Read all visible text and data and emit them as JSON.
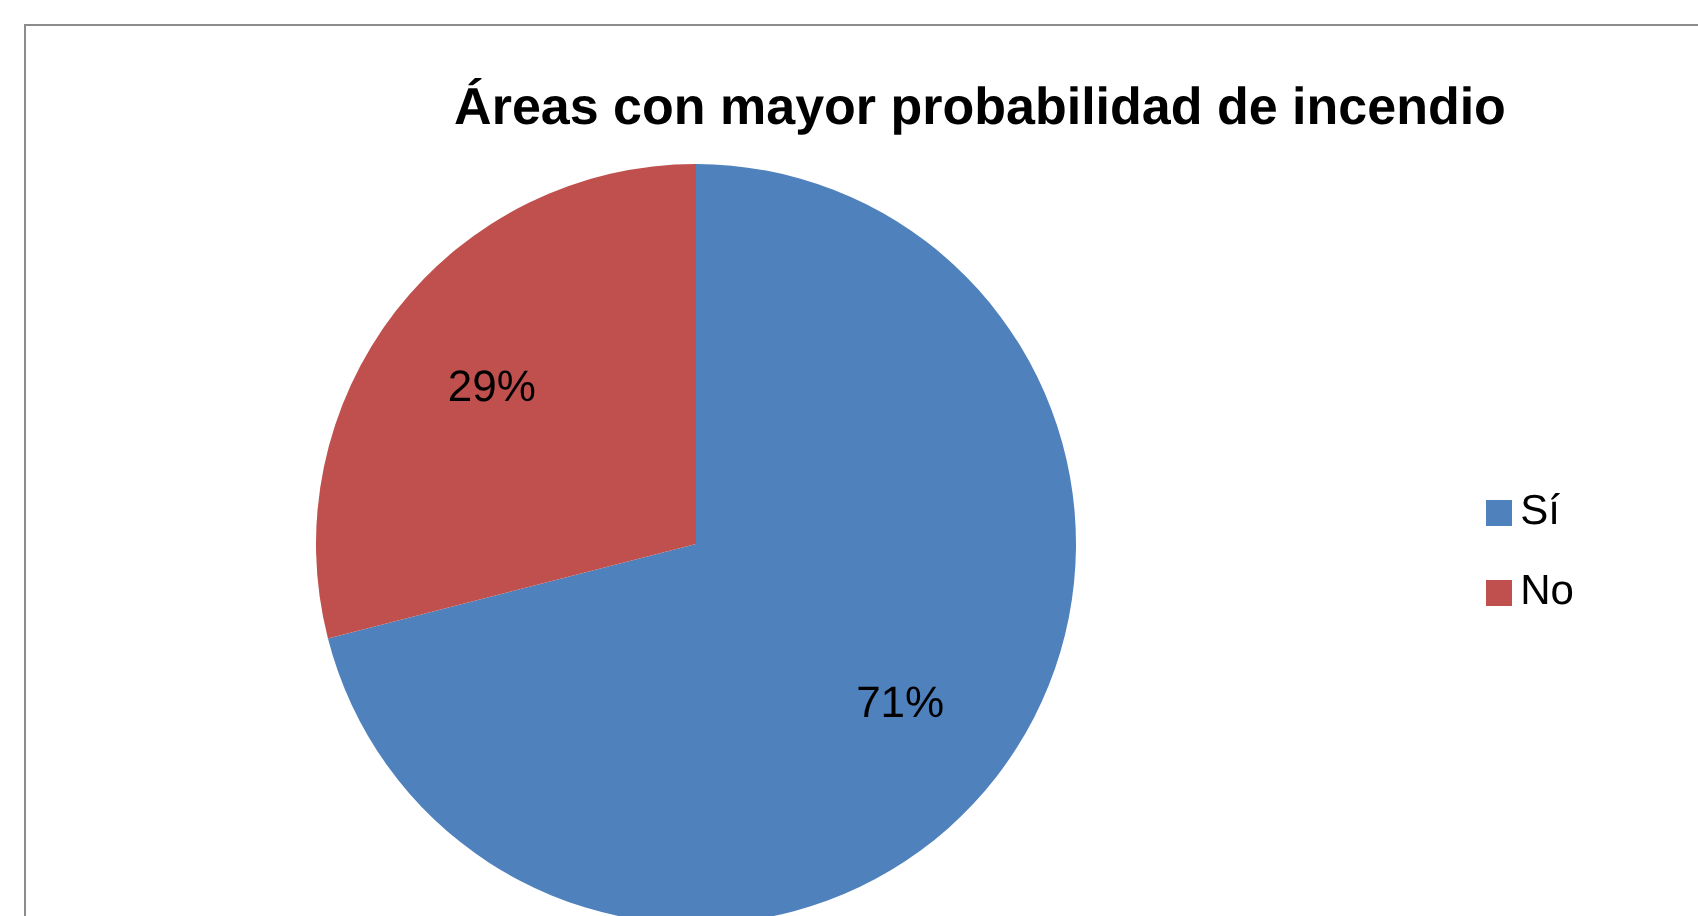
{
  "chart_data": {
    "type": "pie",
    "title": "Áreas con mayor probabilidad de incendio",
    "categories": [
      "Sí",
      "No"
    ],
    "values": [
      71,
      29
    ],
    "colors": [
      "#4f81bd",
      "#c0504d"
    ],
    "value_labels": [
      "71%",
      "29%"
    ],
    "legend": "right"
  }
}
